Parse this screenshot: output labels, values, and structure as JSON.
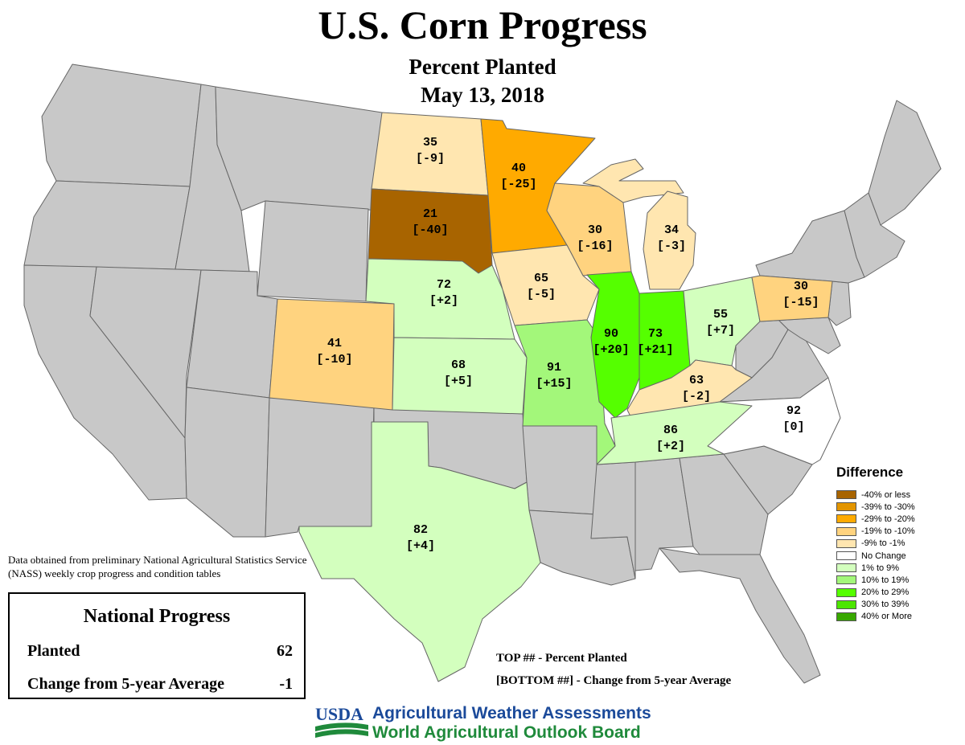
{
  "title": "U.S. Corn Progress",
  "subtitle": "Percent Planted",
  "date": "May 13, 2018",
  "colors": {
    "base": "#c8c8c8",
    "border": "#666666",
    "le_-40": "#a86400",
    "-39_-30": "#e39500",
    "-29_-20": "#ffaa00",
    "-19_-10": "#ffd37f",
    "-9_-1": "#ffe6b0",
    "zero": "#ffffff",
    "1_9": "#d3ffbe",
    "10_19": "#a3f77a",
    "20_29": "#55ff00",
    "30_39": "#4ce600",
    "ge_40": "#38a800"
  },
  "states": [
    {
      "abbr": "ND",
      "planted": "35",
      "change": "[-9]",
      "bin": "-9_-1"
    },
    {
      "abbr": "SD",
      "planted": "21",
      "change": "[-40]",
      "bin": "le_-40"
    },
    {
      "abbr": "MN",
      "planted": "40",
      "change": "[-25]",
      "bin": "-29_-20"
    },
    {
      "abbr": "WI",
      "planted": "30",
      "change": "[-16]",
      "bin": "-19_-10"
    },
    {
      "abbr": "MI",
      "planted": "34",
      "change": "[-3]",
      "bin": "-9_-1"
    },
    {
      "abbr": "NE",
      "planted": "72",
      "change": "[+2]",
      "bin": "1_9"
    },
    {
      "abbr": "IA",
      "planted": "65",
      "change": "[-5]",
      "bin": "-9_-1"
    },
    {
      "abbr": "CO",
      "planted": "41",
      "change": "[-10]",
      "bin": "-19_-10"
    },
    {
      "abbr": "KS",
      "planted": "68",
      "change": "[+5]",
      "bin": "1_9"
    },
    {
      "abbr": "MO",
      "planted": "91",
      "change": "[+15]",
      "bin": "10_19"
    },
    {
      "abbr": "IL",
      "planted": "90",
      "change": "[+20]",
      "bin": "20_29"
    },
    {
      "abbr": "IN",
      "planted": "73",
      "change": "[+21]",
      "bin": "20_29"
    },
    {
      "abbr": "OH",
      "planted": "55",
      "change": "[+7]",
      "bin": "1_9"
    },
    {
      "abbr": "KY",
      "planted": "63",
      "change": "[-2]",
      "bin": "-9_-1"
    },
    {
      "abbr": "TN",
      "planted": "86",
      "change": "[+2]",
      "bin": "1_9"
    },
    {
      "abbr": "NC",
      "planted": "92",
      "change": "[0]",
      "bin": "zero"
    },
    {
      "abbr": "PA",
      "planted": "30",
      "change": "[-15]",
      "bin": "-19_-10"
    },
    {
      "abbr": "TX",
      "planted": "82",
      "change": "[+4]",
      "bin": "1_9"
    }
  ],
  "legend": {
    "title": "Difference",
    "items": [
      {
        "label": "-40% or less",
        "color": "#a86400"
      },
      {
        "label": "-39% to -30%",
        "color": "#e39500"
      },
      {
        "label": "-29% to -20%",
        "color": "#ffaa00"
      },
      {
        "label": "-19% to -10%",
        "color": "#ffd37f"
      },
      {
        "label": "-9% to -1%",
        "color": "#ffe6b0"
      },
      {
        "label": "No Change",
        "color": "#ffffff"
      },
      {
        "label": "1% to 9%",
        "color": "#d3ffbe"
      },
      {
        "label": "10% to 19%",
        "color": "#a3f77a"
      },
      {
        "label": "20% to 29%",
        "color": "#55ff00"
      },
      {
        "label": "30% to 39%",
        "color": "#4ce600"
      },
      {
        "label": "40% or More",
        "color": "#38a800"
      }
    ]
  },
  "source_note": "Data obtained from preliminary National Agricultural Statistics Service (NASS) weekly crop progress and condition tables",
  "national": {
    "title": "National Progress",
    "planted_label": "Planted",
    "planted_value": "62",
    "change_label": "Change from 5-year Average",
    "change_value": "-1"
  },
  "key": {
    "top": "TOP ## - Percent Planted",
    "bottom": "[BOTTOM ##] - Change from 5-year Average"
  },
  "logo": {
    "text": "USDA"
  },
  "org": {
    "line1": "Agricultural Weather Assessments",
    "line2": "World Agricultural Outlook Board"
  }
}
